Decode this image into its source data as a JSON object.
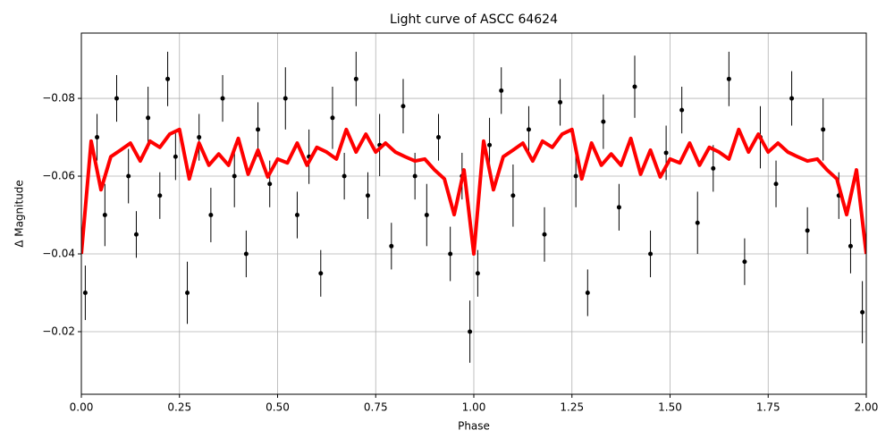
{
  "chart_data": {
    "type": "scatter",
    "title": "Light curve of ASCC 64624",
    "x_label": "Phase",
    "y_label": "Δ Magnitude",
    "xlim": [
      0,
      2
    ],
    "ylim": [
      -0.0968,
      -0.0039
    ],
    "y_inverted": true,
    "grid": true,
    "xticks": [
      {
        "value": 0,
        "label": "0.00"
      },
      {
        "value": 0.25,
        "label": "0.25"
      },
      {
        "value": 0.5,
        "label": "0.50"
      },
      {
        "value": 0.75,
        "label": "0.75"
      },
      {
        "value": 1,
        "label": "1.00"
      },
      {
        "value": 1.25,
        "label": "1.25"
      },
      {
        "value": 1.5,
        "label": "1.50"
      },
      {
        "value": 1.75,
        "label": "1.75"
      },
      {
        "value": 2,
        "label": "2.00"
      }
    ],
    "yticks": [
      {
        "value": -0.08,
        "label": "−0.08"
      },
      {
        "value": -0.06,
        "label": "−0.06"
      },
      {
        "value": -0.04,
        "label": "−0.04"
      },
      {
        "value": -0.02,
        "label": "−0.02"
      }
    ],
    "points": {
      "color": "#000000",
      "x": [
        0.01,
        0.04,
        0.06,
        0.09,
        0.12,
        0.14,
        0.17,
        0.2,
        0.22,
        0.24,
        0.27,
        0.3,
        0.33,
        0.36,
        0.39,
        0.42,
        0.45,
        0.48,
        0.52,
        0.55,
        0.58,
        0.61,
        0.64,
        0.67,
        0.7,
        0.73,
        0.76,
        0.79,
        0.82,
        0.85,
        0.88,
        0.91,
        0.94,
        0.97,
        0.99,
        1.01,
        1.04,
        1.07,
        1.1,
        1.14,
        1.18,
        1.22,
        1.26,
        1.29,
        1.33,
        1.37,
        1.41,
        1.45,
        1.49,
        1.53,
        1.57,
        1.61,
        1.65,
        1.69,
        1.73,
        1.77,
        1.81,
        1.85,
        1.89,
        1.93,
        1.96,
        1.99
      ],
      "values": [
        -0.03,
        -0.07,
        -0.05,
        -0.08,
        -0.06,
        -0.045,
        -0.075,
        -0.055,
        -0.085,
        -0.065,
        -0.03,
        -0.07,
        -0.05,
        -0.08,
        -0.06,
        -0.04,
        -0.072,
        -0.058,
        -0.08,
        -0.05,
        -0.065,
        -0.035,
        -0.075,
        -0.06,
        -0.085,
        -0.055,
        -0.068,
        -0.042,
        -0.078,
        -0.06,
        -0.05,
        -0.07,
        -0.04,
        -0.06,
        -0.02,
        -0.035,
        -0.068,
        -0.082,
        -0.055,
        -0.072,
        -0.045,
        -0.079,
        -0.06,
        -0.03,
        -0.074,
        -0.052,
        -0.083,
        -0.04,
        -0.066,
        -0.077,
        -0.048,
        -0.062,
        -0.085,
        -0.038,
        -0.07,
        -0.058,
        -0.08,
        -0.046,
        -0.072,
        -0.055,
        -0.042,
        -0.025
      ],
      "errors": [
        0.007,
        0.006,
        0.008,
        0.006,
        0.007,
        0.006,
        0.008,
        0.006,
        0.007,
        0.006,
        0.008,
        0.006,
        0.007,
        0.006,
        0.008,
        0.006,
        0.007,
        0.006,
        0.008,
        0.006,
        0.007,
        0.006,
        0.008,
        0.006,
        0.007,
        0.006,
        0.008,
        0.006,
        0.007,
        0.006,
        0.008,
        0.006,
        0.007,
        0.006,
        0.008,
        0.006,
        0.007,
        0.006,
        0.008,
        0.006,
        0.007,
        0.006,
        0.008,
        0.006,
        0.007,
        0.006,
        0.008,
        0.006,
        0.007,
        0.006,
        0.008,
        0.006,
        0.007,
        0.006,
        0.008,
        0.006,
        0.007,
        0.006,
        0.008,
        0.006,
        0.007,
        0.008
      ]
    },
    "model": {
      "color": "#ff0000",
      "x": [
        0,
        0.025,
        0.05,
        0.075,
        0.1,
        0.125,
        0.15,
        0.175,
        0.2,
        0.225,
        0.25,
        0.275,
        0.3,
        0.325,
        0.35,
        0.375,
        0.4,
        0.425,
        0.45,
        0.475,
        0.5,
        0.525,
        0.55,
        0.575,
        0.6,
        0.625,
        0.65,
        0.675,
        0.7,
        0.725,
        0.75,
        0.775,
        0.8,
        0.825,
        0.85,
        0.875,
        0.9,
        0.925,
        0.95,
        0.975,
        1,
        1.025,
        1.05,
        1.075,
        1.1,
        1.125,
        1.15,
        1.175,
        1.2,
        1.225,
        1.25,
        1.275,
        1.3,
        1.325,
        1.35,
        1.375,
        1.4,
        1.425,
        1.45,
        1.475,
        1.5,
        1.525,
        1.55,
        1.575,
        1.6,
        1.625,
        1.65,
        1.675,
        1.7,
        1.725,
        1.75,
        1.775,
        1.8,
        1.825,
        1.85,
        1.875,
        1.9,
        1.925,
        1.95,
        1.975,
        2
      ],
      "values": [
        -0.04,
        -0.069,
        -0.0565,
        -0.065,
        -0.0667,
        -0.0685,
        -0.0639,
        -0.069,
        -0.0674,
        -0.0708,
        -0.072,
        -0.0593,
        -0.0685,
        -0.0628,
        -0.0657,
        -0.0628,
        -0.0697,
        -0.0605,
        -0.0667,
        -0.0598,
        -0.0644,
        -0.0634,
        -0.0685,
        -0.0628,
        -0.0674,
        -0.0662,
        -0.0644,
        -0.072,
        -0.0662,
        -0.0708,
        -0.0662,
        -0.0685,
        -0.0662,
        -0.065,
        -0.0639,
        -0.0644,
        -0.0616,
        -0.0593,
        -0.0501,
        -0.0616,
        -0.04,
        -0.069,
        -0.0565,
        -0.065,
        -0.0667,
        -0.0685,
        -0.0639,
        -0.069,
        -0.0674,
        -0.0708,
        -0.072,
        -0.0593,
        -0.0685,
        -0.0628,
        -0.0657,
        -0.0628,
        -0.0697,
        -0.0605,
        -0.0667,
        -0.0598,
        -0.0644,
        -0.0634,
        -0.0685,
        -0.0628,
        -0.0674,
        -0.0662,
        -0.0644,
        -0.072,
        -0.0662,
        -0.0708,
        -0.0662,
        -0.0685,
        -0.0662,
        -0.065,
        -0.0639,
        -0.0644,
        -0.0616,
        -0.0593,
        -0.0501,
        -0.0616,
        -0.04
      ]
    }
  }
}
